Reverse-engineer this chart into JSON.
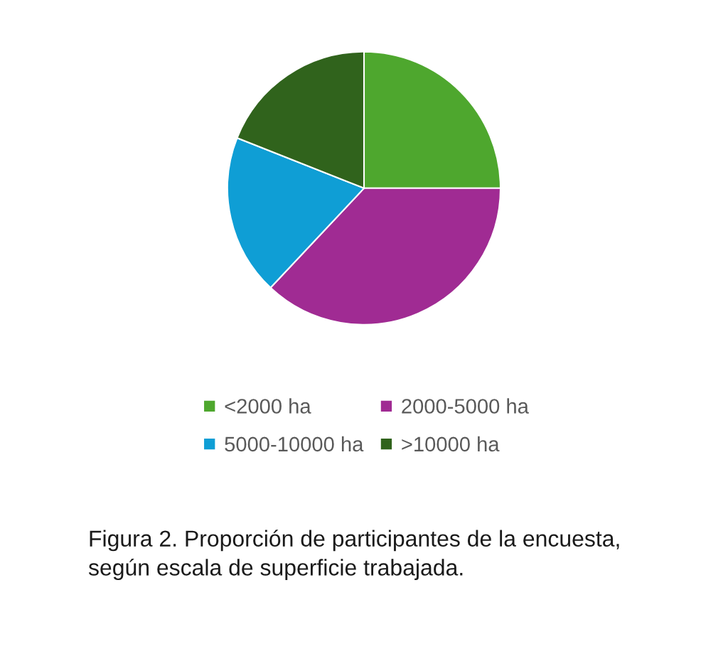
{
  "chart_data": {
    "type": "pie",
    "categories": [
      "<2000 ha",
      "2000-5000 ha",
      "5000-10000 ha",
      ">10000 ha"
    ],
    "values": [
      25,
      37,
      19,
      19
    ],
    "colors": [
      "#4ea72e",
      "#a02b93",
      "#0f9ed5",
      "#30631c"
    ],
    "legend": "bottom",
    "annotations": [
      "Figura 2. Proporción de participantes de la encuesta, según escala de superficie trabajada."
    ]
  }
}
